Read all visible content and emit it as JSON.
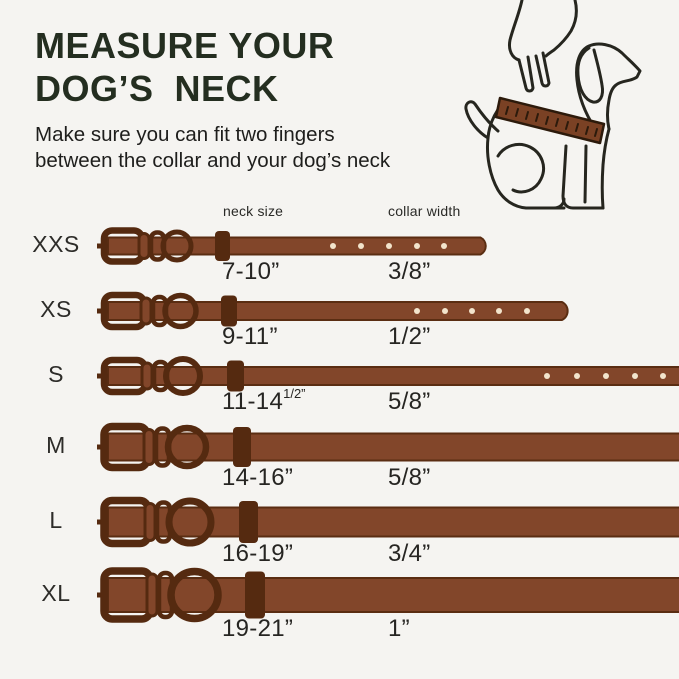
{
  "header": {
    "title_line1": "MEASURE YOUR",
    "title_line2": "DOG’S  NECK",
    "subtitle_line1": "Make sure you can fit two fingers",
    "subtitle_line2": "between the collar and your dog’s neck"
  },
  "illustration": {
    "alt": "hand with two fingers measuring a dog's neck with a brown ruler"
  },
  "table": {
    "columns": {
      "neck": "neck size",
      "width": "collar width"
    },
    "rows": [
      {
        "size": "XXS",
        "neck": "7-10”",
        "width": "3/8”"
      },
      {
        "size": "XS",
        "neck": "9-11”",
        "width": "1/2”"
      },
      {
        "size": "S",
        "neck": "11-14",
        "neck_sup": "1/2”",
        "width": "5/8”"
      },
      {
        "size": "M",
        "neck": "14-16”",
        "width": "5/8”"
      },
      {
        "size": "L",
        "neck": "16-19”",
        "width": "3/4”"
      },
      {
        "size": "XL",
        "neck": "19-21”",
        "width": "1”"
      }
    ]
  },
  "colors": {
    "background": "#f5f4f1",
    "title": "#242e20",
    "text": "#1e1e1c",
    "strap": "#82462a",
    "hardware": "#552a10",
    "hole": "#f2e4cc",
    "ruler": "#7a4124",
    "line_art": "#26261f"
  }
}
